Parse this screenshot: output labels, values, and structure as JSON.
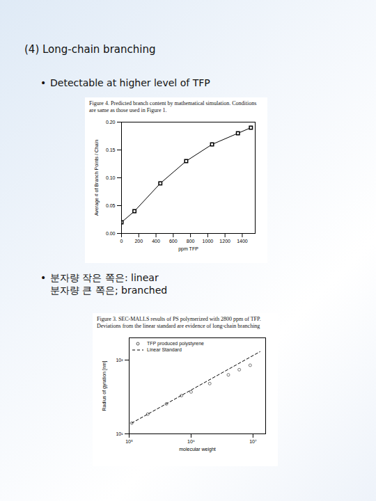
{
  "slide": {
    "heading": "(4) Long-chain branching",
    "bullet": "•",
    "bullets": [
      {
        "lines": [
          "Detectable at higher level of TFP"
        ]
      },
      {
        "lines": [
          "분자량 작은 쪽은: linear",
          "분자량 큰 쪽은; branched"
        ]
      }
    ]
  },
  "chart_data": [
    {
      "type": "line",
      "title": "Figure 4.  Predicted branch content by mathematical simulation. Conditions are same as those used in Figure 1.",
      "x_label": "ppm TFP",
      "y_label": "Average # of Branch Points / Chain",
      "x": [
        0,
        150,
        450,
        750,
        1050,
        1350,
        1500
      ],
      "values": [
        0.02,
        0.04,
        0.09,
        0.13,
        0.16,
        0.18,
        0.19
      ],
      "color": "#000000",
      "marker": "square",
      "xlim": [
        0,
        1550
      ],
      "xticks": [
        0,
        200,
        400,
        600,
        800,
        1000,
        1200,
        1400
      ],
      "ylim": [
        0,
        0.2
      ],
      "yticks": [
        {
          "value": 0,
          "label": "0.00"
        },
        {
          "value": 0.05,
          "label": "0.05"
        },
        {
          "value": 0.1,
          "label": "0.10"
        },
        {
          "value": 0.15,
          "label": "0.15"
        },
        {
          "value": 0.2,
          "label": "0.20"
        }
      ],
      "grid": false
    },
    {
      "type": "scatter",
      "title": "Figure 3.  SEC-MALLS results of PS polymerized with 2800 ppm of TFP.  Deviations from the linear standard are evidence of long-chain branching",
      "x_label": "molecular weight",
      "y_label": "Radius of gyration [nm]",
      "log": true,
      "xlim": [
        100000,
        16000000
      ],
      "xticks": [
        {
          "value": 100000,
          "label": "10⁵"
        },
        {
          "value": 1000000,
          "label": "10⁶"
        },
        {
          "value": 10000000,
          "label": "10⁷"
        }
      ],
      "ylim": [
        10,
        200
      ],
      "yticks": [
        {
          "value": 10,
          "label": "10¹"
        },
        {
          "value": 100,
          "label": "10²"
        }
      ],
      "grid": false,
      "legend": "top-left",
      "series": [
        {
          "name": "TFP produced polystyrene",
          "type": "scatter",
          "marker": "circle",
          "color": "#555555",
          "x": [
            110000,
            200000,
            400000,
            700000,
            1000000,
            2000000,
            4000000,
            6000000,
            9000000
          ],
          "values": [
            14,
            18.5,
            25.5,
            33,
            37,
            48,
            63,
            74,
            85
          ]
        },
        {
          "name": "Linear Standard",
          "type": "line",
          "line_style": "dashed",
          "color": "#000000",
          "x": [
            110000,
            13000000
          ],
          "values": [
            14,
            130
          ]
        }
      ]
    }
  ]
}
